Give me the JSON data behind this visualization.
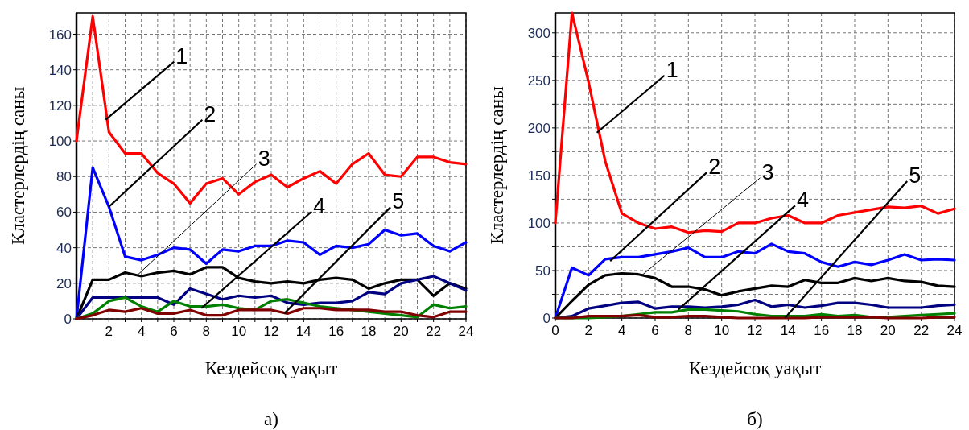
{
  "chart_data": [
    {
      "type": "line",
      "title": "а)",
      "xlabel": "Кездейсоқ уақыт",
      "ylabel": "Кластерлердің саны",
      "x": [
        0,
        1,
        2,
        3,
        4,
        5,
        6,
        7,
        8,
        9,
        10,
        11,
        12,
        13,
        14,
        15,
        16,
        17,
        18,
        19,
        20,
        21,
        22,
        23,
        24
      ],
      "xlim": [
        0,
        24
      ],
      "ylim": [
        0,
        172
      ],
      "xticks": [
        {
          "value": 1,
          "label": null
        },
        2,
        {
          "value": 3,
          "label": null
        },
        4,
        {
          "value": 5,
          "label": null
        },
        6,
        {
          "value": 7,
          "label": null
        },
        8,
        {
          "value": 9,
          "label": null
        },
        10,
        {
          "value": 11,
          "label": null
        },
        12,
        {
          "value": 13,
          "label": null
        },
        14,
        {
          "value": 15,
          "label": null
        },
        16,
        {
          "value": 17,
          "label": null
        },
        18,
        {
          "value": 19,
          "label": null
        },
        20,
        {
          "value": 21,
          "label": null
        },
        22,
        {
          "value": 23,
          "label": null
        },
        24
      ],
      "yticks": [
        0,
        20,
        40,
        60,
        80,
        100,
        120,
        140,
        160
      ],
      "grid": true,
      "line_style": "solid",
      "marker": "none",
      "series": [
        {
          "color": "#ff0000",
          "values": [
            100,
            170,
            105,
            93,
            93,
            82,
            76,
            65,
            76,
            79,
            70,
            77,
            81,
            74,
            79,
            83,
            76,
            87,
            93,
            81,
            80,
            91,
            91,
            88,
            87
          ]
        },
        {
          "color": "#0000ff",
          "values": [
            0,
            85,
            63,
            35,
            33,
            36,
            40,
            39,
            31,
            39,
            38,
            41,
            41,
            44,
            43,
            36,
            41,
            40,
            42,
            50,
            47,
            48,
            41,
            38,
            43
          ]
        },
        {
          "color": "#000000",
          "values": [
            0,
            22,
            22,
            26,
            24,
            26,
            27,
            25,
            29,
            29,
            23,
            21,
            20,
            21,
            20,
            22,
            23,
            22,
            17,
            20,
            22,
            22,
            13,
            20,
            17
          ]
        },
        {
          "color": "#000080",
          "values": [
            0,
            12,
            12,
            12,
            12,
            12,
            8,
            17,
            14,
            11,
            13,
            12,
            13,
            9,
            8,
            9,
            9,
            10,
            15,
            14,
            20,
            22,
            24,
            20,
            16
          ]
        },
        {
          "color": "#008000",
          "values": [
            0,
            3,
            10,
            12,
            7,
            4,
            10,
            7,
            7,
            8,
            6,
            5,
            10,
            11,
            9,
            7,
            6,
            5,
            4,
            3,
            2,
            1,
            8,
            6,
            7
          ]
        },
        {
          "color": "#800000",
          "values": [
            0,
            2,
            5,
            4,
            6,
            3,
            3,
            5,
            2,
            2,
            5,
            5,
            5,
            3,
            6,
            6,
            5,
            5,
            5,
            4,
            4,
            2,
            1,
            4,
            4
          ]
        }
      ],
      "annotations": [
        {
          "text": "1",
          "x": 1.8,
          "y": 112
        },
        {
          "text": "2",
          "x": 2,
          "y": 63
        },
        {
          "text": "3",
          "x": 3.8,
          "y": 25
        },
        {
          "text": "4",
          "x": 7.7,
          "y": 6
        },
        {
          "text": "5",
          "x": 12.8,
          "y": 3
        }
      ]
    },
    {
      "type": "line",
      "title": "б)",
      "xlabel": "Кездейсоқ уақыт",
      "ylabel": "Кластерлердің саны",
      "x": [
        0,
        1,
        2,
        3,
        4,
        5,
        6,
        7,
        8,
        9,
        10,
        11,
        12,
        13,
        14,
        15,
        16,
        17,
        18,
        19,
        20,
        21,
        22,
        23,
        24
      ],
      "xlim": [
        0,
        24
      ],
      "ylim": [
        0,
        321
      ],
      "xticks": [
        0,
        2,
        4,
        6,
        8,
        10,
        12,
        14,
        16,
        18,
        20,
        22,
        24
      ],
      "yticks": [
        0,
        {
          "value": 25,
          "label": null
        },
        50,
        {
          "value": 75,
          "label": null
        },
        100,
        {
          "value": 125,
          "label": null
        },
        150,
        {
          "value": 175,
          "label": null
        },
        200,
        {
          "value": 225,
          "label": null
        },
        250,
        {
          "value": 275,
          "label": null
        },
        300
      ],
      "grid": true,
      "line_style": "solid",
      "marker": "none",
      "series": [
        {
          "color": "#ff0000",
          "values": [
            100,
            321,
            248,
            165,
            110,
            100,
            94,
            96,
            90,
            92,
            91,
            100,
            100,
            105,
            108,
            100,
            100,
            108,
            111,
            114,
            117,
            116,
            118,
            110,
            115
          ]
        },
        {
          "color": "#0000ff",
          "values": [
            0,
            53,
            45,
            62,
            64,
            64,
            67,
            70,
            74,
            64,
            64,
            70,
            68,
            78,
            70,
            68,
            59,
            54,
            59,
            56,
            61,
            67,
            61,
            62,
            61
          ]
        },
        {
          "color": "#000000",
          "values": [
            0,
            18,
            35,
            45,
            47,
            46,
            42,
            33,
            33,
            30,
            24,
            28,
            31,
            34,
            33,
            40,
            37,
            37,
            42,
            39,
            42,
            39,
            38,
            34,
            33
          ]
        },
        {
          "color": "#000080",
          "values": [
            0,
            2,
            10,
            13,
            16,
            17,
            10,
            12,
            12,
            11,
            12,
            14,
            19,
            12,
            14,
            11,
            13,
            16,
            16,
            14,
            11,
            11,
            11,
            13,
            14
          ]
        },
        {
          "color": "#008000",
          "values": [
            0,
            0,
            0,
            1,
            2,
            4,
            6,
            6,
            9,
            9,
            8,
            7,
            4,
            2,
            2,
            2,
            4,
            2,
            3,
            1,
            1,
            2,
            3,
            4,
            5
          ]
        },
        {
          "color": "#800000",
          "values": [
            0,
            0,
            2,
            2,
            2,
            3,
            1,
            1,
            2,
            2,
            1,
            0,
            0,
            0,
            0,
            0,
            1,
            1,
            1,
            1,
            0,
            0,
            0,
            1,
            1
          ]
        }
      ],
      "annotations": [
        {
          "text": "1",
          "x": 2.5,
          "y": 195
        },
        {
          "text": "2",
          "x": 3.3,
          "y": 60
        },
        {
          "text": "3",
          "x": 5.2,
          "y": 45
        },
        {
          "text": "4",
          "x": 7.4,
          "y": 9
        },
        {
          "text": "5",
          "x": 13.8,
          "y": 0
        }
      ]
    }
  ]
}
